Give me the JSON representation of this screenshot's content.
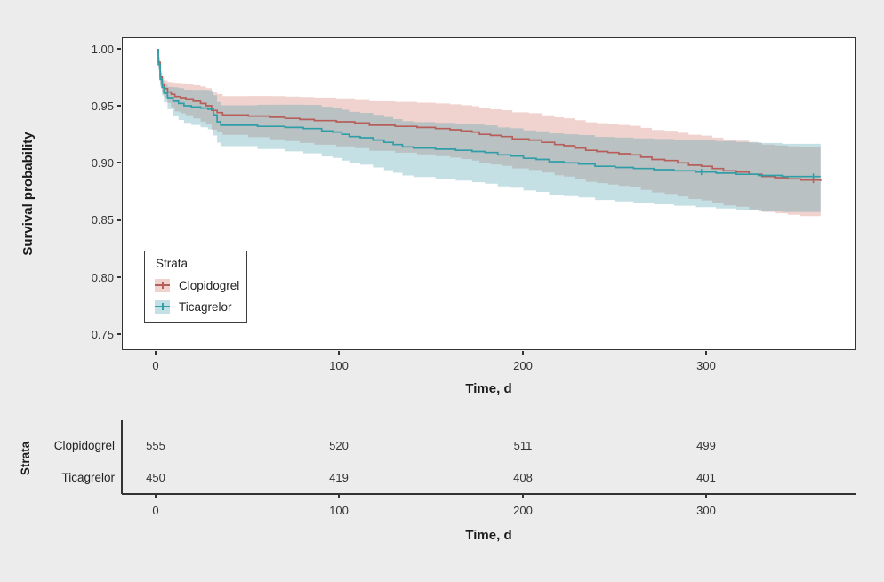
{
  "figure_background": "#ECECEC",
  "chart_data": {
    "type": "line",
    "subtype": "kaplan-meier-step-with-confidence-bands",
    "title": "",
    "xlabel": "Time, d",
    "ylabel": "Survival probability",
    "xlim": [
      -18,
      382
    ],
    "ylim": [
      0.745,
      1.005
    ],
    "x_ticks": [
      0,
      100,
      200,
      300
    ],
    "x_tick_labels": [
      "0",
      "100",
      "200",
      "300"
    ],
    "y_ticks": [
      1.0,
      0.95,
      0.9,
      0.85,
      0.8,
      0.75
    ],
    "y_tick_labels": [
      "1.00",
      "0.95",
      "0.90",
      "0.85",
      "0.80",
      "0.75"
    ],
    "grid": false,
    "legend": {
      "title": "Strata",
      "position": "inside-lower-left"
    },
    "series": [
      {
        "name": "Clopidogrel",
        "line_color": "#b65f5a",
        "band_fill": "rgba(205,106,96,0.30)",
        "censor_times": [
          358
        ],
        "ci": {
          "t": [
            0,
            10,
            30,
            84,
            150,
            220,
            300,
            362
          ],
          "up": [
            0.004,
            0.012,
            0.016,
            0.02,
            0.022,
            0.024,
            0.027,
            0.029
          ],
          "down": [
            0.004,
            0.013,
            0.017,
            0.021,
            0.024,
            0.027,
            0.03,
            0.032
          ]
        },
        "steps": [
          [
            0,
            1.0
          ],
          [
            1,
            0.989
          ],
          [
            2,
            0.976
          ],
          [
            3,
            0.97
          ],
          [
            4,
            0.966
          ],
          [
            6,
            0.963
          ],
          [
            8,
            0.961
          ],
          [
            10,
            0.959
          ],
          [
            13,
            0.958
          ],
          [
            16,
            0.957
          ],
          [
            20,
            0.955
          ],
          [
            24,
            0.953
          ],
          [
            27,
            0.951
          ],
          [
            30,
            0.947
          ],
          [
            33,
            0.945
          ],
          [
            36,
            0.943
          ],
          [
            50,
            0.942
          ],
          [
            62,
            0.941
          ],
          [
            70,
            0.94
          ],
          [
            78,
            0.939
          ],
          [
            86,
            0.938
          ],
          [
            98,
            0.937
          ],
          [
            108,
            0.936
          ],
          [
            116,
            0.934
          ],
          [
            130,
            0.933
          ],
          [
            142,
            0.932
          ],
          [
            152,
            0.931
          ],
          [
            160,
            0.93
          ],
          [
            166,
            0.929
          ],
          [
            172,
            0.928
          ],
          [
            176,
            0.926
          ],
          [
            182,
            0.925
          ],
          [
            188,
            0.924
          ],
          [
            194,
            0.922
          ],
          [
            203,
            0.921
          ],
          [
            210,
            0.919
          ],
          [
            217,
            0.917
          ],
          [
            222,
            0.916
          ],
          [
            228,
            0.914
          ],
          [
            234,
            0.912
          ],
          [
            240,
            0.911
          ],
          [
            246,
            0.91
          ],
          [
            252,
            0.909
          ],
          [
            258,
            0.908
          ],
          [
            264,
            0.906
          ],
          [
            270,
            0.904
          ],
          [
            277,
            0.903
          ],
          [
            284,
            0.901
          ],
          [
            290,
            0.899
          ],
          [
            297,
            0.898
          ],
          [
            303,
            0.896
          ],
          [
            309,
            0.894
          ],
          [
            316,
            0.893
          ],
          [
            323,
            0.891
          ],
          [
            330,
            0.889
          ],
          [
            337,
            0.888
          ],
          [
            344,
            0.887
          ],
          [
            351,
            0.886
          ],
          [
            362,
            0.885
          ]
        ]
      },
      {
        "name": "Ticagrelor",
        "line_color": "#2f9ea7",
        "band_fill": "rgba(70,158,172,0.32)",
        "censor_times": [
          297,
          358
        ],
        "ci": {
          "t": [
            0,
            10,
            30,
            84,
            150,
            220,
            300,
            362
          ],
          "up": [
            0.004,
            0.013,
            0.017,
            0.021,
            0.023,
            0.025,
            0.028,
            0.029
          ],
          "down": [
            0.004,
            0.014,
            0.018,
            0.022,
            0.026,
            0.029,
            0.031,
            0.031
          ]
        },
        "steps": [
          [
            0,
            1.0
          ],
          [
            1,
            0.987
          ],
          [
            2,
            0.974
          ],
          [
            3,
            0.967
          ],
          [
            4,
            0.962
          ],
          [
            6,
            0.958
          ],
          [
            9,
            0.955
          ],
          [
            12,
            0.953
          ],
          [
            15,
            0.951
          ],
          [
            19,
            0.95
          ],
          [
            24,
            0.949
          ],
          [
            28,
            0.948
          ],
          [
            31,
            0.943
          ],
          [
            33,
            0.937
          ],
          [
            35,
            0.934
          ],
          [
            55,
            0.933
          ],
          [
            70,
            0.932
          ],
          [
            80,
            0.931
          ],
          [
            90,
            0.929
          ],
          [
            96,
            0.928
          ],
          [
            101,
            0.926
          ],
          [
            105,
            0.924
          ],
          [
            111,
            0.923
          ],
          [
            118,
            0.921
          ],
          [
            124,
            0.919
          ],
          [
            129,
            0.917
          ],
          [
            134,
            0.915
          ],
          [
            140,
            0.914
          ],
          [
            152,
            0.913
          ],
          [
            163,
            0.912
          ],
          [
            172,
            0.911
          ],
          [
            179,
            0.91
          ],
          [
            186,
            0.908
          ],
          [
            193,
            0.907
          ],
          [
            200,
            0.905
          ],
          [
            207,
            0.904
          ],
          [
            214,
            0.902
          ],
          [
            222,
            0.901
          ],
          [
            230,
            0.9
          ],
          [
            239,
            0.898
          ],
          [
            250,
            0.897
          ],
          [
            260,
            0.896
          ],
          [
            271,
            0.895
          ],
          [
            282,
            0.894
          ],
          [
            294,
            0.893
          ],
          [
            305,
            0.892
          ],
          [
            316,
            0.891
          ],
          [
            328,
            0.89
          ],
          [
            341,
            0.889
          ],
          [
            362,
            0.889
          ]
        ]
      }
    ],
    "risk_table": {
      "axis_label": "Strata",
      "xlabel": "Time, d",
      "times": [
        0,
        100,
        200,
        300
      ],
      "rows": [
        {
          "label": "Clopidogrel",
          "values": [
            "555",
            "520",
            "511",
            "499"
          ]
        },
        {
          "label": "Ticagrelor",
          "values": [
            "450",
            "419",
            "408",
            "401"
          ]
        }
      ]
    }
  }
}
